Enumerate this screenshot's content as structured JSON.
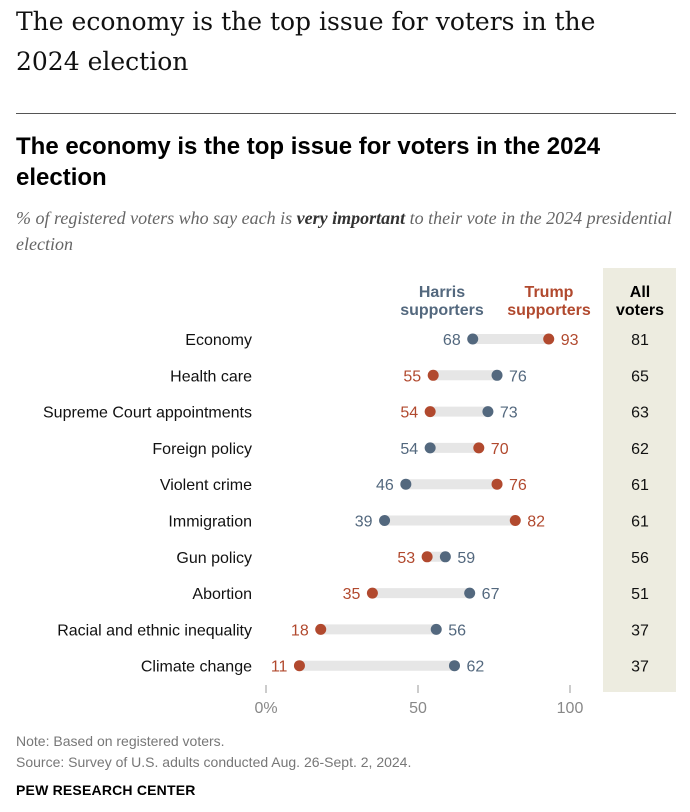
{
  "page": {
    "title": "The economy is the top issue for voters in the 2024 election",
    "subtitle_pre": "% of registered voters who say each is ",
    "subtitle_emph": "very important",
    "subtitle_post": " to their vote in the 2024 presidential election",
    "note": "Note: Based on registered voters.",
    "source": "Source: Survey of U.S. adults conducted Aug. 26-Sept. 2, 2024.",
    "brand": "PEW RESEARCH CENTER"
  },
  "colors": {
    "harris": "#53687e",
    "trump": "#b1492e",
    "bar": "#e6e6e6",
    "all_voters_bg": "#edece0",
    "axis": "#999999"
  },
  "chart_data": {
    "type": "dot-plot",
    "title": "The economy is the top issue for voters in the 2024 election",
    "xlim": [
      0,
      100
    ],
    "xticks": [
      0,
      50,
      100
    ],
    "xtick_labels": [
      "0%",
      "50",
      "100"
    ],
    "series_labels": {
      "harris": [
        "Harris",
        "supporters"
      ],
      "trump": [
        "Trump",
        "supporters"
      ],
      "all": [
        "All",
        "voters"
      ]
    },
    "categories": [
      "Economy",
      "Health care",
      "Supreme Court appointments",
      "Foreign policy",
      "Violent crime",
      "Immigration",
      "Gun policy",
      "Abortion",
      "Racial and ethnic inequality",
      "Climate change"
    ],
    "series": [
      {
        "name": "Harris supporters",
        "values": [
          68,
          76,
          73,
          54,
          46,
          39,
          59,
          67,
          56,
          62
        ]
      },
      {
        "name": "Trump supporters",
        "values": [
          93,
          55,
          54,
          70,
          76,
          82,
          53,
          35,
          18,
          11
        ]
      },
      {
        "name": "All voters",
        "values": [
          81,
          65,
          63,
          62,
          61,
          61,
          56,
          51,
          37,
          37
        ]
      }
    ]
  }
}
